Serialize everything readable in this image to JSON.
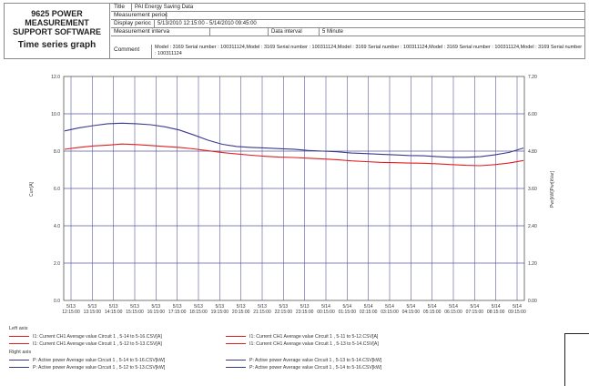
{
  "header": {
    "brand_line1": "9625 POWER",
    "brand_line2": "MEASUREMENT",
    "brand_line3": "SUPPORT SOFTWARE",
    "brand_subtitle": "Time series graph",
    "title_label": "Title",
    "title_value": "PAI Energy Saving Data",
    "measurement_period_label": "Measurement perioc",
    "display_period_label": "Display perioc",
    "display_period_value": "5/13/2010 12:15:00 - 5/14/2010 09:45:00",
    "measurement_interval_label": "Measurement interva",
    "data_interval_label": "Data interval",
    "data_interval_value": "5 Minute",
    "comment_label": "Comment",
    "comment_value": "Model : 3169 Serial number : 100311124,Model : 3169 Serial number : 100311124,Model : 3169 Serial number : 100311124,Model : 3169 Serial number : 100311124,Model : 3169 Serial number : 100311124"
  },
  "chart_data": {
    "type": "line",
    "ylabel_left": "Curr[A]",
    "ylabel_right": "Pwr[kW]Pwr[kVar]",
    "y_left_ticks": [
      "12.0",
      "10.0",
      "8.0",
      "6.0",
      "4.0",
      "2.0",
      "0.0"
    ],
    "y_right_ticks": [
      "7.20",
      "6.00",
      "4.80",
      "3.60",
      "2.40",
      "1.20",
      "0.00"
    ],
    "ylim_left": [
      0,
      12
    ],
    "ylim_right": [
      0,
      7.2
    ],
    "x_ticks": [
      [
        "5/13",
        "12:15:00"
      ],
      [
        "5/13",
        "13:15:00"
      ],
      [
        "5/13",
        "14:15:00"
      ],
      [
        "5/13",
        "15:15:00"
      ],
      [
        "5/13",
        "16:15:00"
      ],
      [
        "5/13",
        "17:15:00"
      ],
      [
        "5/13",
        "18:15:00"
      ],
      [
        "5/13",
        "19:15:00"
      ],
      [
        "5/13",
        "20:15:00"
      ],
      [
        "5/13",
        "21:15:00"
      ],
      [
        "5/13",
        "22:15:00"
      ],
      [
        "5/13",
        "23:15:00"
      ],
      [
        "5/14",
        "00:15:00"
      ],
      [
        "5/14",
        "01:15:00"
      ],
      [
        "5/14",
        "02:15:00"
      ],
      [
        "5/14",
        "03:15:00"
      ],
      [
        "5/14",
        "04:15:00"
      ],
      [
        "5/14",
        "05:15:00"
      ],
      [
        "5/14",
        "06:15:00"
      ],
      [
        "5/14",
        "07:15:00"
      ],
      [
        "5/14",
        "08:15:00"
      ],
      [
        "5/14",
        "09:15:00"
      ]
    ],
    "grid": true,
    "series": [
      {
        "name": "P: Active power Average value Circuit 1 , 5-14 to 5-16.CSV[kW]",
        "axis": "right",
        "color": "#3a3a8c",
        "values": [
          5.45,
          5.55,
          5.62,
          5.68,
          5.7,
          5.68,
          5.65,
          5.58,
          5.48,
          5.32,
          5.15,
          5.02,
          4.95,
          4.92,
          4.9,
          4.88,
          4.86,
          4.82,
          4.8,
          4.78,
          4.74,
          4.72,
          4.7,
          4.68,
          4.66,
          4.65,
          4.62,
          4.6,
          4.6,
          4.62,
          4.68,
          4.76,
          4.9
        ]
      },
      {
        "name": "I1: Current CH1 Average value Circuit 1 , 5-14 to 5-16.CSV[A]",
        "axis": "left",
        "color": "#e02020",
        "values": [
          8.1,
          8.2,
          8.28,
          8.32,
          8.38,
          8.35,
          8.3,
          8.25,
          8.2,
          8.12,
          8.02,
          7.92,
          7.85,
          7.78,
          7.72,
          7.68,
          7.66,
          7.62,
          7.58,
          7.54,
          7.48,
          7.44,
          7.4,
          7.38,
          7.36,
          7.35,
          7.32,
          7.28,
          7.24,
          7.22,
          7.28,
          7.36,
          7.5
        ]
      }
    ],
    "legend": {
      "left_axis_title": "Left axis",
      "right_axis_title": "Right axis",
      "left_items": [
        {
          "name": "I1: Current CH1 Average value Circuit 1 , 5-14 to 5-16.CSV[A]",
          "color": "#e02020"
        },
        {
          "name": "I1: Current CH1 Average value Circuit 1 , 5-11 to 5-12.CSV[A]",
          "color": "#e02020"
        },
        {
          "name": "I1: Current CH1 Average value Circuit 1 , 5-12 to 5-13.CSV[A]",
          "color": "#e02020"
        },
        {
          "name": "I1: Current CH1 Average value Circuit 1 , 5-13 to 5-14.CSV[A]",
          "color": "#e02020"
        }
      ],
      "right_items": [
        {
          "name": "P: Active power Average value Circuit 1 , 5-14 to 5-16.CSV[kW]",
          "color": "#3a3a8c"
        },
        {
          "name": "P: Active power Average value Circuit 1 , 5-13 to 5-14.CSV[kW]",
          "color": "#3a3a8c"
        },
        {
          "name": "P: Active power Average value Circuit 1 , 5-12 to 5-13.CSV[kW]",
          "color": "#3a3a8c"
        },
        {
          "name": "P: Active power Average value Circuit 1 , 5-14 to 5-16.CSV[kW]",
          "color": "#3a3a8c"
        }
      ]
    }
  }
}
